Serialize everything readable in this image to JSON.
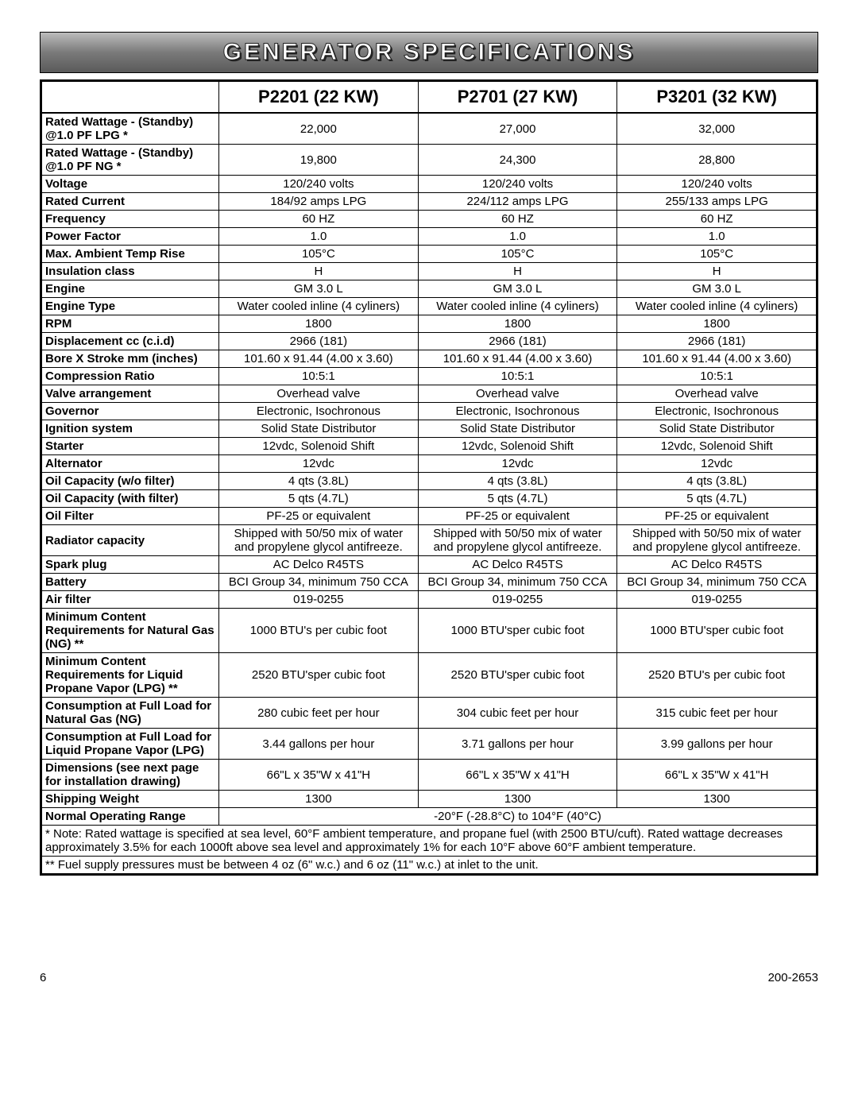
{
  "title": "GENERATOR SPECIFICATIONS",
  "columns": [
    "P2201 (22 KW)",
    "P2701 (27 KW)",
    "P3201 (32 KW)"
  ],
  "rows": [
    {
      "label": "Rated Wattage - (Standby) @1.0 PF LPG *",
      "v": [
        "22,000",
        "27,000",
        "32,000"
      ]
    },
    {
      "label": "Rated Wattage - (Standby) @1.0 PF NG *",
      "v": [
        "19,800",
        "24,300",
        "28,800"
      ]
    },
    {
      "label": "Voltage",
      "v": [
        "120/240 volts",
        "120/240 volts",
        "120/240 volts"
      ]
    },
    {
      "label": "Rated Current",
      "v": [
        "184/92 amps LPG",
        "224/112 amps LPG",
        "255/133 amps LPG"
      ]
    },
    {
      "label": "Frequency",
      "v": [
        "60 HZ",
        "60 HZ",
        "60 HZ"
      ]
    },
    {
      "label": "Power Factor",
      "v": [
        "1.0",
        "1.0",
        "1.0"
      ]
    },
    {
      "label": "Max. Ambient Temp Rise",
      "v": [
        "105°C",
        "105°C",
        "105°C"
      ]
    },
    {
      "label": "Insulation class",
      "v": [
        "H",
        "H",
        "H"
      ]
    },
    {
      "label": "Engine",
      "v": [
        "GM 3.0 L",
        "GM 3.0 L",
        "GM 3.0 L"
      ]
    },
    {
      "label": "Engine Type",
      "v": [
        "Water cooled inline (4 cyliners)",
        "Water cooled inline (4 cyliners)",
        "Water cooled inline (4 cyliners)"
      ]
    },
    {
      "label": "RPM",
      "v": [
        "1800",
        "1800",
        "1800"
      ]
    },
    {
      "label": "Displacement cc (c.i.d)",
      "v": [
        "2966 (181)",
        "2966 (181)",
        "2966 (181)"
      ]
    },
    {
      "label": "Bore X Stroke mm (inches)",
      "v": [
        "101.60 x 91.44 (4.00 x 3.60)",
        "101.60 x 91.44 (4.00 x 3.60)",
        "101.60 x 91.44 (4.00 x 3.60)"
      ]
    },
    {
      "label": "Compression Ratio",
      "v": [
        "10:5:1",
        "10:5:1",
        "10:5:1"
      ]
    },
    {
      "label": "Valve arrangement",
      "v": [
        "Overhead valve",
        "Overhead valve",
        "Overhead valve"
      ]
    },
    {
      "label": "Governor",
      "v": [
        "Electronic, Isochronous",
        "Electronic, Isochronous",
        "Electronic, Isochronous"
      ]
    },
    {
      "label": "Ignition system",
      "v": [
        "Solid State Distributor",
        "Solid State Distributor",
        "Solid State Distributor"
      ]
    },
    {
      "label": "Starter",
      "v": [
        "12vdc, Solenoid Shift",
        "12vdc, Solenoid Shift",
        "12vdc, Solenoid Shift"
      ]
    },
    {
      "label": "Alternator",
      "v": [
        "12vdc",
        "12vdc",
        "12vdc"
      ]
    },
    {
      "label": "Oil Capacity (w/o filter)",
      "v": [
        "4 qts (3.8L)",
        "4 qts (3.8L)",
        "4 qts (3.8L)"
      ]
    },
    {
      "label": "Oil Capacity (with filter)",
      "v": [
        "5 qts (4.7L)",
        "5 qts (4.7L)",
        "5 qts (4.7L)"
      ]
    },
    {
      "label": "Oil Filter",
      "v": [
        "PF-25 or equivalent",
        "PF-25 or equivalent",
        "PF-25 or equivalent"
      ]
    },
    {
      "label": "Radiator capacity",
      "v": [
        "Shipped with 50/50 mix of water and propylene glycol antifreeze.",
        "Shipped with 50/50 mix of water and propylene glycol antifreeze.",
        "Shipped with 50/50 mix of water and propylene glycol antifreeze."
      ]
    },
    {
      "label": "Spark plug",
      "v": [
        "AC Delco R45TS",
        "AC Delco R45TS",
        "AC Delco R45TS"
      ]
    },
    {
      "label": "Battery",
      "v": [
        "BCI Group 34, minimum 750 CCA",
        "BCI Group 34, minimum 750 CCA",
        "BCI Group 34, minimum 750 CCA"
      ]
    },
    {
      "label": "Air filter",
      "v": [
        "019-0255",
        "019-0255",
        "019-0255"
      ]
    },
    {
      "label": "Minimum Content Requirements for Natural Gas (NG) **",
      "v": [
        "1000 BTU's per cubic foot",
        "1000 BTU'sper cubic foot",
        "1000 BTU'sper cubic foot"
      ]
    },
    {
      "label": "Minimum Content Requirements for Liquid Propane Vapor (LPG) **",
      "v": [
        "2520 BTU'sper cubic foot",
        "2520 BTU'sper cubic foot",
        "2520 BTU's  per cubic foot"
      ]
    },
    {
      "label": "Consumption at Full Load for Natural Gas (NG)",
      "v": [
        "280 cubic feet per hour",
        "304 cubic feet per hour",
        "315 cubic feet per hour"
      ]
    },
    {
      "label": "Consumption at Full Load for Liquid Propane Vapor (LPG)",
      "v": [
        "3.44 gallons per hour",
        "3.71 gallons per hour",
        "3.99 gallons per hour"
      ]
    },
    {
      "label": "Dimensions (see next page for installation drawing)",
      "v": [
        "66\"L x 35\"W x 41\"H",
        "66\"L x 35\"W x 41\"H",
        "66\"L x 35\"W x 41\"H"
      ]
    },
    {
      "label": "Shipping Weight",
      "v": [
        "1300",
        "1300",
        "1300"
      ]
    }
  ],
  "rangeRow": {
    "label": "Normal Operating Range",
    "value": "-20°F (-28.8°C) to 104°F (40°C)"
  },
  "notes": [
    "* Note:  Rated wattage is specified at sea level, 60°F ambient temperature, and propane fuel (with 2500 BTU/cuft).  Rated wattage decreases approximately 3.5% for each 1000ft above sea level and approximately 1% for each 10°F above 60°F ambient temperature.",
    "** Fuel supply pressures must be between 4 oz (6\" w.c.) and 6 oz (11\" w.c.) at inlet to the unit."
  ],
  "footer": {
    "page": "6",
    "doc": "200-2653"
  },
  "style": {
    "title_bg_top": "#bcbcbc",
    "title_bg_bottom": "#5a5a5a",
    "border_color": "#000000",
    "font_family": "Arial"
  }
}
